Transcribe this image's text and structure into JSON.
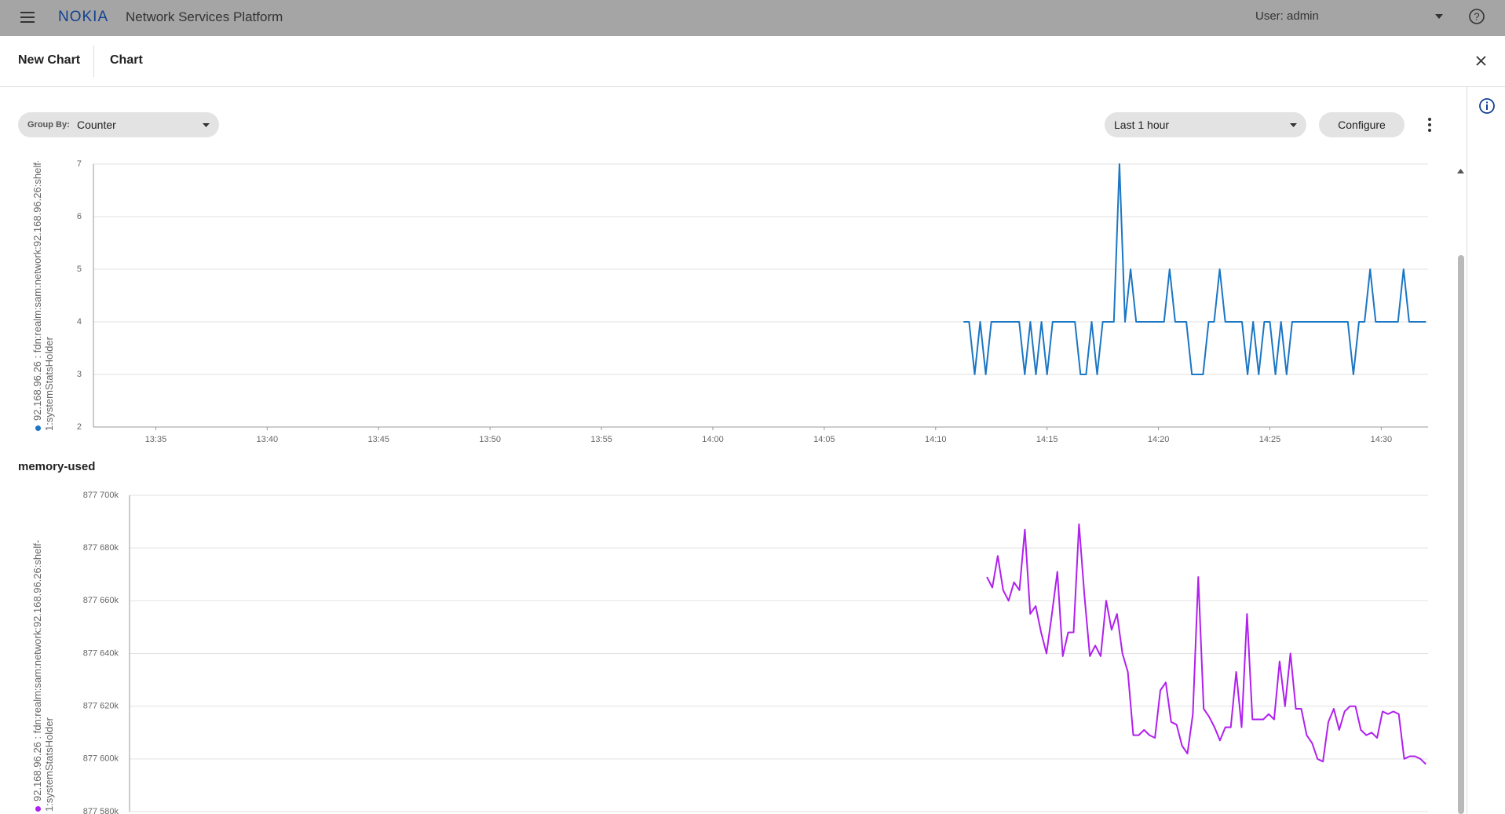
{
  "header": {
    "brand": "NOKIA",
    "app_name": "Network Services Platform",
    "user": "User: admin"
  },
  "tabs": [
    "New Chart",
    "Chart"
  ],
  "toolbar": {
    "group_by_label": "Group By:",
    "group_by_value": "Counter",
    "time_range": "Last 1 hour",
    "configure": "Configure"
  },
  "chart_data": [
    {
      "type": "line",
      "xlim": [
        812.2,
        872.1
      ],
      "xticks": [
        {
          "value": 815,
          "label": "13:35"
        },
        {
          "value": 820,
          "label": "13:40"
        },
        {
          "value": 825,
          "label": "13:45"
        },
        {
          "value": 830,
          "label": "13:50"
        },
        {
          "value": 835,
          "label": "13:55"
        },
        {
          "value": 840,
          "label": "14:00"
        },
        {
          "value": 845,
          "label": "14:05"
        },
        {
          "value": 850,
          "label": "14:10"
        },
        {
          "value": 855,
          "label": "14:15"
        },
        {
          "value": 860,
          "label": "14:20"
        },
        {
          "value": 865,
          "label": "14:25"
        },
        {
          "value": 870,
          "label": "14:30"
        }
      ],
      "ylim": [
        2,
        7
      ],
      "yticks": [
        2,
        3,
        4,
        5,
        6,
        7
      ],
      "grid": true,
      "x": [
        851.25,
        851.5,
        851.75,
        852,
        852.25,
        852.5,
        852.75,
        853,
        853.25,
        853.5,
        853.75,
        854,
        854.25,
        854.5,
        854.75,
        855,
        855.25,
        855.5,
        855.75,
        856,
        856.25,
        856.5,
        856.75,
        857,
        857.25,
        857.5,
        857.75,
        858,
        858.25,
        858.5,
        858.75,
        859,
        859.25,
        859.5,
        859.75,
        860,
        860.25,
        860.5,
        860.75,
        861,
        861.25,
        861.5,
        861.75,
        862,
        862.25,
        862.5,
        862.75,
        863,
        863.25,
        863.5,
        863.75,
        864,
        864.25,
        864.5,
        864.75,
        865,
        865.25,
        865.5,
        865.75,
        866,
        866.25,
        866.5,
        866.75,
        867,
        867.25,
        867.5,
        867.75,
        868,
        868.25,
        868.5,
        868.75,
        869,
        869.25,
        869.5,
        869.75,
        870,
        870.25,
        870.5,
        870.75,
        871,
        871.25,
        871.5,
        871.75,
        872
      ],
      "series": [
        {
          "name": "92.168.96.26 : fdn:realm:sam:network:92.168.96.26:shelf-1:systemStatsHolder",
          "color": "#1b76c4",
          "values": [
            4,
            4,
            3,
            4,
            3,
            4,
            4,
            4,
            4,
            4,
            4,
            3,
            4,
            3,
            4,
            3,
            4,
            4,
            4,
            4,
            4,
            3,
            3,
            4,
            3,
            4,
            4,
            4,
            7,
            4,
            5,
            4,
            4,
            4,
            4,
            4,
            4,
            5,
            4,
            4,
            4,
            3,
            3,
            3,
            4,
            4,
            5,
            4,
            4,
            4,
            4,
            3,
            4,
            3,
            4,
            4,
            3,
            4,
            3,
            4,
            4,
            4,
            4,
            4,
            4,
            4,
            4,
            4,
            4,
            4,
            3,
            4,
            4,
            5,
            4,
            4,
            4,
            4,
            4,
            5,
            4,
            4,
            4,
            4
          ]
        }
      ]
    },
    {
      "type": "line",
      "title": "memory-used",
      "xlim": [
        812.2,
        872.1
      ],
      "ylim": [
        877580,
        877700
      ],
      "yticks": [
        {
          "value": 877580,
          "label": "877 580k"
        },
        {
          "value": 877600,
          "label": "877 600k"
        },
        {
          "value": 877620,
          "label": "877 620k"
        },
        {
          "value": 877640,
          "label": "877 640k"
        },
        {
          "value": 877660,
          "label": "877 660k"
        },
        {
          "value": 877680,
          "label": "877 680k"
        },
        {
          "value": 877700,
          "label": "877 700k"
        }
      ],
      "grid": true,
      "x": [
        851.75,
        852,
        852.25,
        852.5,
        852.75,
        853,
        853.25,
        853.5,
        853.75,
        854,
        854.25,
        854.5,
        854.75,
        855,
        855.25,
        855.5,
        855.75,
        856,
        856.25,
        856.5,
        856.75,
        857,
        857.25,
        857.5,
        857.75,
        858,
        858.25,
        858.5,
        858.75,
        859,
        859.25,
        859.5,
        859.75,
        860,
        860.25,
        860.5,
        860.75,
        861,
        861.25,
        861.5,
        861.75,
        862,
        862.25,
        862.5,
        862.75,
        863,
        863.25,
        863.5,
        863.75,
        864,
        864.25,
        864.5,
        864.75,
        865,
        865.25,
        865.5,
        865.75,
        866,
        866.25,
        866.5,
        866.75,
        867,
        867.25,
        867.5,
        867.75,
        868,
        868.25,
        868.5,
        868.75,
        869,
        869.25,
        869.5,
        869.75,
        870,
        870.25,
        870.5,
        870.75,
        871,
        871.25,
        871.5,
        871.75,
        872
      ],
      "series": [
        {
          "name": "92.168.96.26 : fdn:realm:sam:network:92.168.96.26:shelf-1:systemStatsHolder",
          "color": "#b020ee",
          "values": [
            877669,
            877665,
            877677,
            877664,
            877660,
            877667,
            877664,
            877687,
            877655,
            877658,
            877648,
            877640,
            877655,
            877671,
            877639,
            877648,
            877648,
            877689,
            877662,
            877639,
            877643,
            877639,
            877660,
            877649,
            877655,
            877640,
            877633,
            877609,
            877609,
            877611,
            877609,
            877608,
            877626,
            877629,
            877614,
            877613,
            877605,
            877602,
            877617,
            877669,
            877619,
            877616,
            877612,
            877607,
            877612,
            877612,
            877633,
            877612,
            877655,
            877615,
            877615,
            877615,
            877617,
            877615,
            877637,
            877620,
            877640,
            877619,
            877619,
            877609,
            877606,
            877600,
            877599,
            877614,
            877619,
            877611,
            877618,
            877620,
            877620,
            877611,
            877609,
            877610,
            877608,
            877618,
            877617,
            877618,
            877617,
            877600,
            877601,
            877601,
            877600,
            877598
          ]
        }
      ]
    }
  ]
}
